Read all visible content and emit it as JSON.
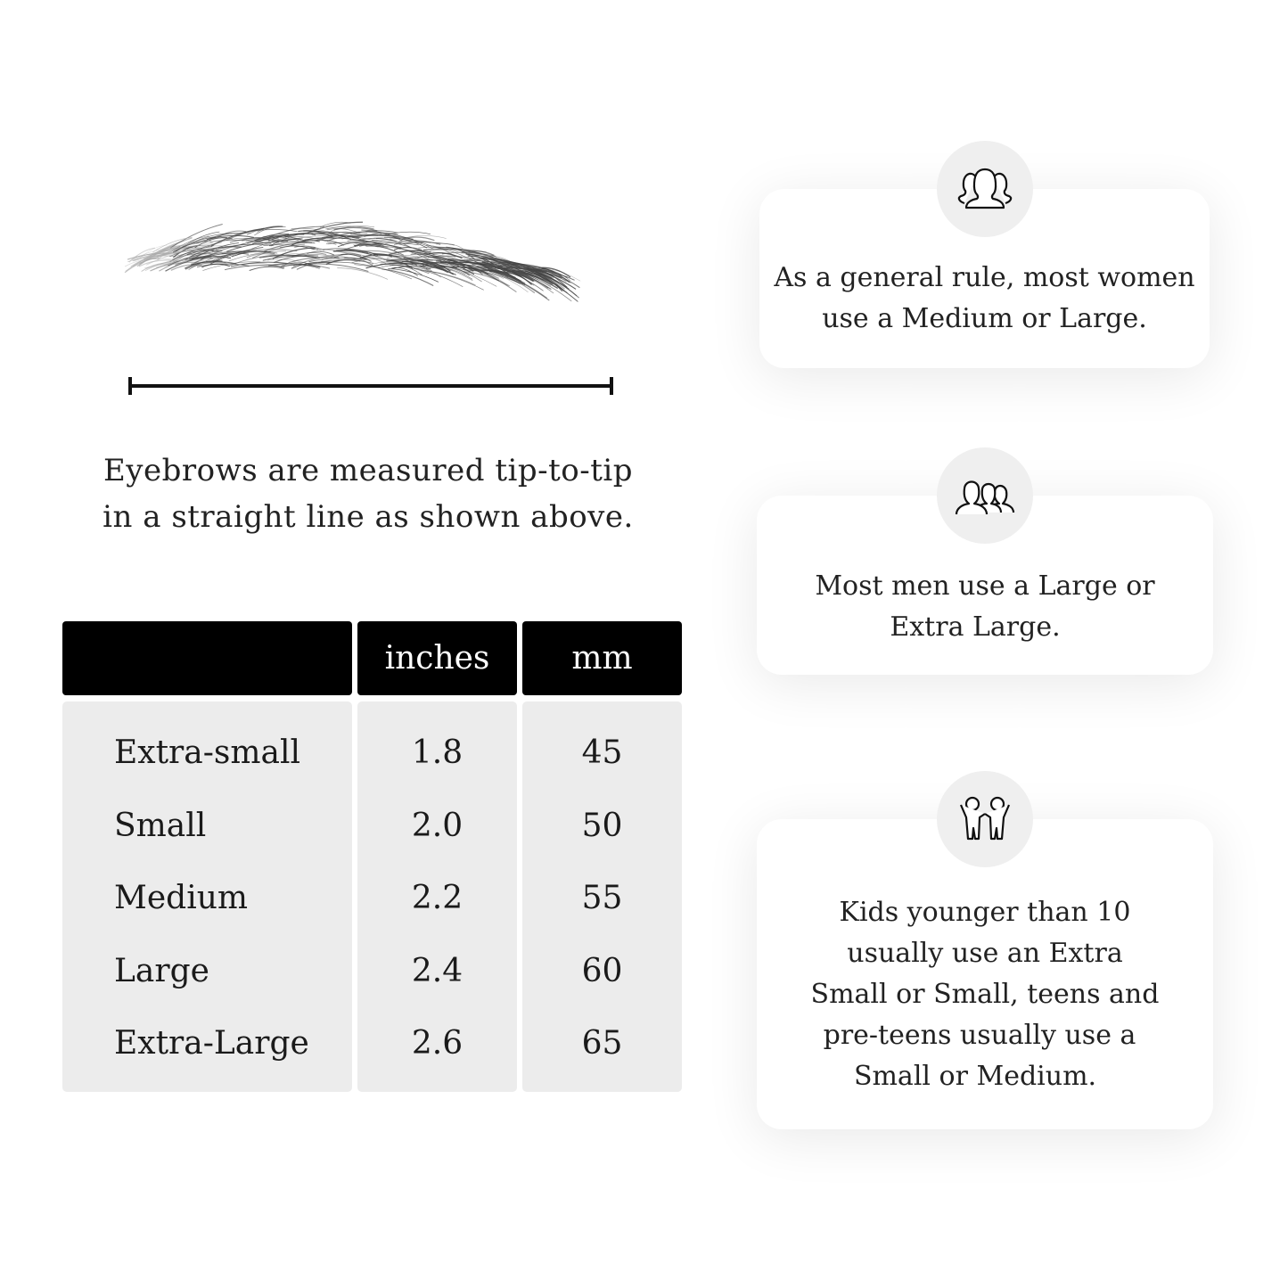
{
  "caption": {
    "line1": "Eyebrows are measured tip-to-tip",
    "line2": "in a straight line as shown above."
  },
  "table": {
    "headers": [
      "",
      "inches",
      "mm"
    ],
    "rows": [
      {
        "size": "Extra-small",
        "inches": "1.8",
        "mm": "45"
      },
      {
        "size": "Small",
        "inches": "2.0",
        "mm": "50"
      },
      {
        "size": "Medium",
        "inches": "2.2",
        "mm": "55"
      },
      {
        "size": "Large",
        "inches": "2.4",
        "mm": "60"
      },
      {
        "size": "Extra-Large",
        "inches": "2.6",
        "mm": "65"
      }
    ]
  },
  "cards": [
    {
      "icon": "women-group-icon",
      "lines": [
        "As a general rule, most women",
        "use a Medium or Large."
      ]
    },
    {
      "icon": "men-group-icon",
      "lines": [
        "Most men use a Large or",
        "Extra Large."
      ]
    },
    {
      "icon": "kids-icon",
      "lines": [
        "Kids younger than 10",
        "usually use an Extra",
        "Small or Small, teens and",
        "pre-teens usually use a",
        "Small or Medium."
      ]
    }
  ]
}
